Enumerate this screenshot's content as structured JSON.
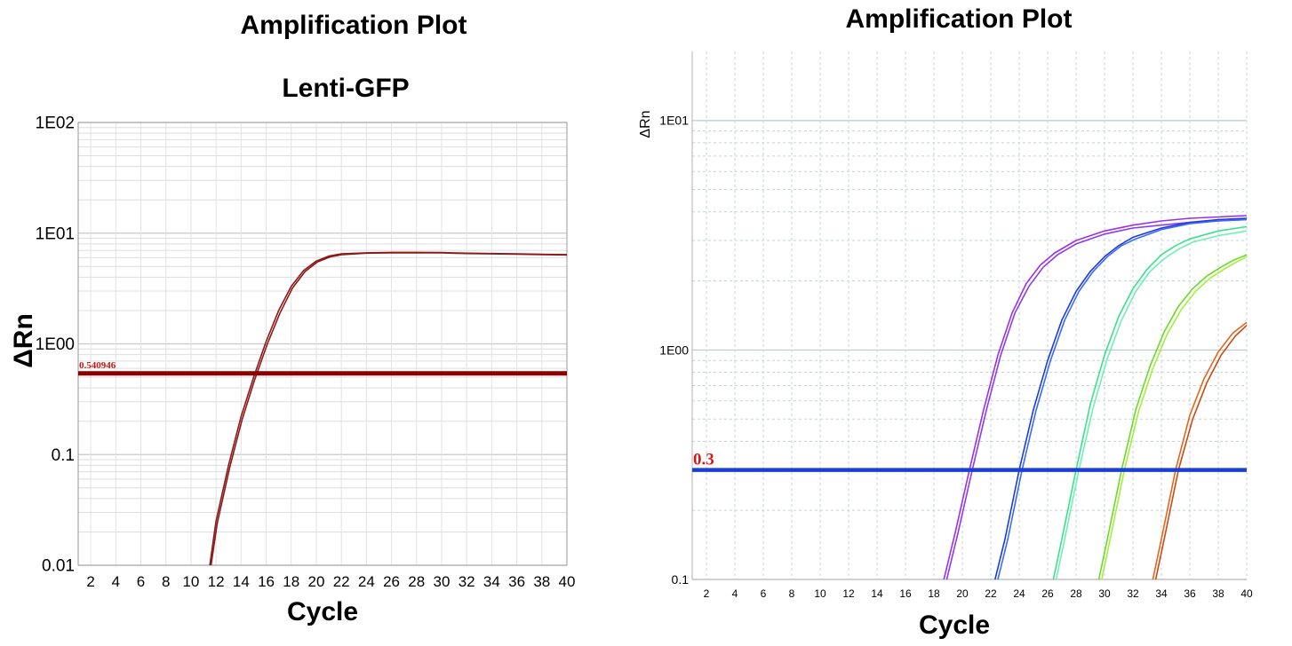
{
  "chart_data": [
    {
      "type": "line",
      "title": "Amplification Plot",
      "subtitle": "Lenti-GFP",
      "xlabel": "Cycle",
      "ylabel": "ΔRn",
      "y_scale": "log",
      "xlim": [
        1,
        40
      ],
      "ylim": [
        0.01,
        100
      ],
      "x_ticks": [
        2,
        4,
        6,
        8,
        10,
        12,
        14,
        16,
        18,
        20,
        22,
        24,
        26,
        28,
        30,
        32,
        34,
        36,
        38,
        40
      ],
      "y_ticks": [
        {
          "value": 0.01,
          "label": "0.01"
        },
        {
          "value": 0.1,
          "label": "0.1"
        },
        {
          "value": 1,
          "label": "1E00"
        },
        {
          "value": 10,
          "label": "1E01"
        },
        {
          "value": 100,
          "label": "1E02"
        }
      ],
      "grid": true,
      "threshold": {
        "value": 0.540946,
        "label": "0.540946",
        "color": "#8b0000"
      },
      "series": [
        {
          "color": "#8b1a1a",
          "x": [
            11.5,
            12,
            13,
            14,
            15,
            16,
            17,
            18,
            19,
            20,
            21,
            22,
            24,
            26,
            28,
            30,
            32,
            34,
            36,
            38,
            40
          ],
          "values": [
            0.01,
            0.025,
            0.08,
            0.22,
            0.5,
            1.05,
            2.0,
            3.3,
            4.6,
            5.6,
            6.2,
            6.5,
            6.65,
            6.7,
            6.7,
            6.68,
            6.6,
            6.55,
            6.5,
            6.45,
            6.4
          ]
        },
        {
          "color": "#8b1a1a",
          "x": [
            11.6,
            12.1,
            13.1,
            14.1,
            15.1,
            16.1,
            17.1,
            18.1,
            19.1,
            20.1,
            21.1,
            22.1,
            24,
            26,
            28,
            30,
            32,
            34,
            36,
            38,
            40
          ],
          "values": [
            0.01,
            0.024,
            0.077,
            0.21,
            0.48,
            1.0,
            1.9,
            3.2,
            4.5,
            5.5,
            6.1,
            6.4,
            6.6,
            6.65,
            6.65,
            6.63,
            6.55,
            6.5,
            6.45,
            6.4,
            6.35
          ]
        }
      ]
    },
    {
      "type": "line",
      "title": "Amplification Plot",
      "xlabel": "Cycle",
      "ylabel": "ΔRn",
      "y_scale": "log",
      "xlim": [
        1,
        40
      ],
      "ylim": [
        0.1,
        20
      ],
      "x_ticks": [
        2,
        4,
        6,
        8,
        10,
        12,
        14,
        16,
        18,
        20,
        22,
        24,
        26,
        28,
        30,
        32,
        34,
        36,
        38,
        40
      ],
      "y_ticks": [
        {
          "value": 0.1,
          "label": "0.1"
        },
        {
          "value": 1,
          "label": "1E00"
        },
        {
          "value": 10,
          "label": "1E01"
        }
      ],
      "grid": true,
      "threshold": {
        "value": 0.3,
        "label": "0.3",
        "color": "#1a3fd6"
      },
      "series": [
        {
          "color": "#9b30e8",
          "x": [
            18.7,
            19.5,
            20.5,
            21.5,
            22.5,
            23.5,
            24.5,
            25.5,
            26.5,
            28,
            30,
            32,
            34,
            36,
            38,
            40
          ],
          "values": [
            0.1,
            0.16,
            0.3,
            0.55,
            0.95,
            1.45,
            1.95,
            2.35,
            2.65,
            3.0,
            3.3,
            3.5,
            3.65,
            3.75,
            3.8,
            3.85
          ]
        },
        {
          "color": "#8a3cf0",
          "x": [
            18.9,
            19.7,
            20.7,
            21.7,
            22.7,
            23.7,
            24.7,
            25.7,
            26.7,
            28,
            30,
            32,
            34,
            36,
            38,
            40
          ],
          "values": [
            0.1,
            0.16,
            0.3,
            0.55,
            0.95,
            1.45,
            1.9,
            2.3,
            2.6,
            2.9,
            3.2,
            3.4,
            3.5,
            3.6,
            3.65,
            3.7
          ]
        },
        {
          "color": "#1e3adf",
          "x": [
            22.3,
            23,
            24,
            25,
            26,
            27,
            28,
            29,
            30,
            31,
            32,
            34,
            36,
            38,
            40
          ],
          "values": [
            0.1,
            0.15,
            0.3,
            0.55,
            0.9,
            1.35,
            1.8,
            2.2,
            2.55,
            2.85,
            3.1,
            3.4,
            3.6,
            3.7,
            3.75
          ]
        },
        {
          "color": "#3a6cf5",
          "x": [
            22.5,
            23.2,
            24.2,
            25.2,
            26.2,
            27.2,
            28.2,
            29.2,
            30.2,
            31.2,
            32.2,
            34,
            36,
            38,
            40
          ],
          "values": [
            0.1,
            0.15,
            0.3,
            0.55,
            0.9,
            1.35,
            1.8,
            2.2,
            2.55,
            2.85,
            3.05,
            3.35,
            3.55,
            3.65,
            3.7
          ]
        },
        {
          "color": "#3be08a",
          "x": [
            26.4,
            27,
            28,
            29,
            30,
            31,
            32,
            33,
            34,
            35,
            36,
            38,
            40
          ],
          "values": [
            0.1,
            0.15,
            0.3,
            0.58,
            0.95,
            1.4,
            1.85,
            2.25,
            2.6,
            2.85,
            3.05,
            3.3,
            3.45
          ]
        },
        {
          "color": "#6ff0b4",
          "x": [
            26.6,
            27.2,
            28.2,
            29.2,
            30.2,
            31.2,
            32.2,
            33.2,
            34.2,
            35.2,
            36.2,
            38,
            40
          ],
          "values": [
            0.1,
            0.15,
            0.3,
            0.56,
            0.92,
            1.35,
            1.8,
            2.2,
            2.5,
            2.75,
            2.95,
            3.15,
            3.3
          ]
        },
        {
          "color": "#6ad92a",
          "x": [
            29.6,
            30.2,
            31.2,
            32.2,
            33.2,
            34.2,
            35.2,
            36.2,
            37.2,
            38.2,
            39,
            40
          ],
          "values": [
            0.1,
            0.15,
            0.3,
            0.55,
            0.85,
            1.2,
            1.55,
            1.85,
            2.1,
            2.3,
            2.45,
            2.6
          ]
        },
        {
          "color": "#a6ee3a",
          "x": [
            29.8,
            30.4,
            31.4,
            32.4,
            33.4,
            34.4,
            35.4,
            36.4,
            37.4,
            38.4,
            39.2,
            40
          ],
          "values": [
            0.1,
            0.15,
            0.3,
            0.54,
            0.83,
            1.17,
            1.5,
            1.8,
            2.05,
            2.25,
            2.4,
            2.55
          ]
        },
        {
          "color": "#e2661a",
          "x": [
            33.4,
            34,
            35,
            36,
            37,
            38,
            39,
            40
          ],
          "values": [
            0.1,
            0.15,
            0.3,
            0.52,
            0.75,
            0.98,
            1.18,
            1.32
          ]
        },
        {
          "color": "#c84a12",
          "x": [
            33.6,
            34.2,
            35.2,
            36.2,
            37.2,
            38.2,
            39.2,
            40
          ],
          "values": [
            0.1,
            0.15,
            0.3,
            0.5,
            0.72,
            0.95,
            1.15,
            1.28
          ]
        }
      ]
    }
  ]
}
